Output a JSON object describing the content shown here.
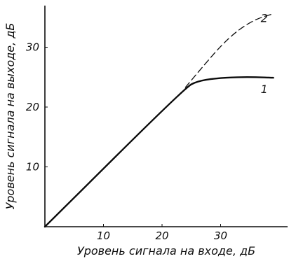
{
  "chart_data": {
    "type": "line",
    "xlabel": "Уровень сигнала на входе, дБ",
    "ylabel": "Уровень сигнала на выходе, дБ",
    "xlim": [
      0,
      40
    ],
    "ylim": [
      0,
      40
    ],
    "x_ticks": [
      10,
      20,
      30
    ],
    "y_ticks": [
      10,
      20,
      30
    ],
    "grid": false,
    "series": [
      {
        "name": "1",
        "style": "solid",
        "x": [
          0,
          24,
          26,
          29,
          33,
          36,
          39
        ],
        "y": [
          0,
          23.3,
          24.3,
          24.8,
          25,
          25,
          24.9
        ]
      },
      {
        "name": "2",
        "style": "dashed",
        "x": [
          24,
          27,
          30,
          33,
          36,
          39
        ],
        "y": [
          23.3,
          26.8,
          30.2,
          32.9,
          34.7,
          35.6
        ]
      }
    ]
  }
}
